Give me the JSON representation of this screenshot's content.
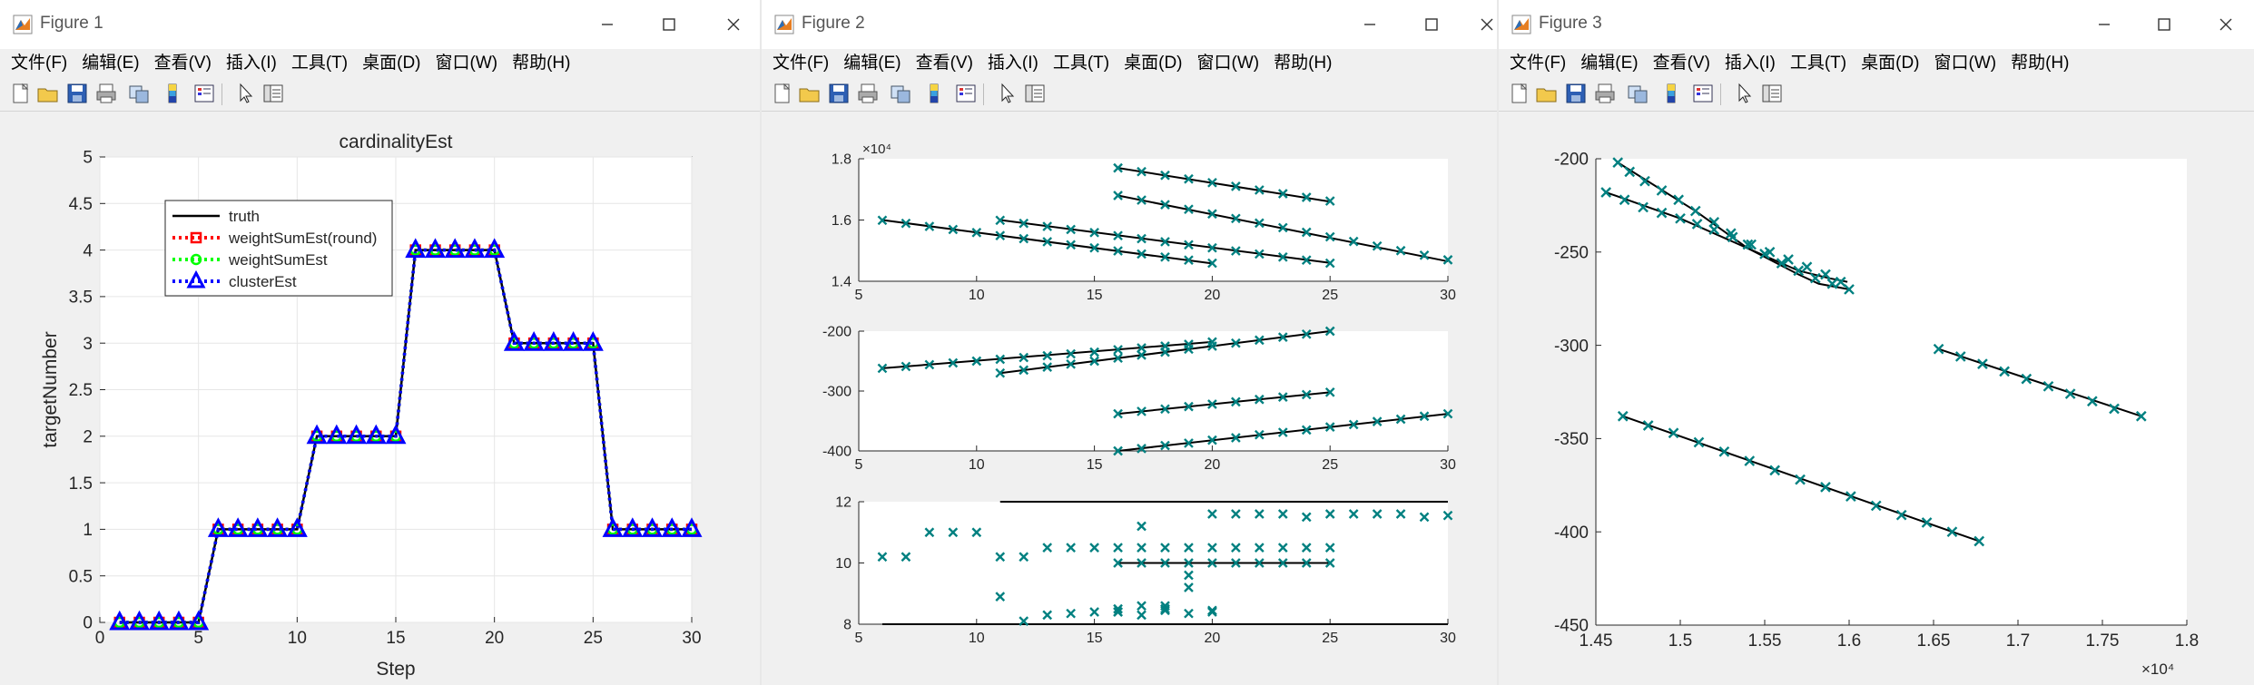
{
  "windows": [
    {
      "title": "Figure 1",
      "menu": [
        "文件(F)",
        "编辑(E)",
        "查看(V)",
        "插入(I)",
        "工具(T)",
        "桌面(D)",
        "窗口(W)",
        "帮助(H)"
      ]
    },
    {
      "title": "Figure 2",
      "menu": [
        "文件(F)",
        "编辑(E)",
        "查看(V)",
        "插入(I)",
        "工具(T)",
        "桌面(D)",
        "窗口(W)",
        "帮助(H)"
      ]
    },
    {
      "title": "Figure 3",
      "menu": [
        "文件(F)",
        "编辑(E)",
        "查看(V)",
        "插入(I)",
        "工具(T)",
        "桌面(D)",
        "窗口(W)",
        "帮助(H)"
      ]
    }
  ],
  "toolbar_icons": [
    "new-figure-icon",
    "open-icon",
    "save-icon",
    "print-icon",
    "link-icon",
    "colorbar-icon",
    "legend-icon",
    "pointer-icon",
    "property-inspector-icon"
  ],
  "colors": {
    "truth": "#000000",
    "round": "#ff0000",
    "weight": "#00ff00",
    "cluster": "#0000ff",
    "teal": "#008080",
    "axes_bg": "#ffffff"
  },
  "chart_data": [
    {
      "type": "line",
      "title": "cardinalityEst",
      "xlabel": "Step",
      "ylabel": "targetNumber",
      "xlim": [
        0,
        30
      ],
      "ylim": [
        0,
        5
      ],
      "xticks": [
        0,
        5,
        10,
        15,
        20,
        25,
        30
      ],
      "yticks": [
        0,
        0.5,
        1,
        1.5,
        2,
        2.5,
        3,
        3.5,
        4,
        4.5,
        5
      ],
      "grid": true,
      "legend_position": "upper-left",
      "x": [
        1,
        2,
        3,
        4,
        5,
        6,
        7,
        8,
        9,
        10,
        11,
        12,
        13,
        14,
        15,
        16,
        17,
        18,
        19,
        20,
        21,
        22,
        23,
        24,
        25,
        26,
        27,
        28,
        29,
        30
      ],
      "series": [
        {
          "name": "truth",
          "style": "solid",
          "color": "#000000",
          "marker": "none",
          "values": [
            0,
            0,
            0,
            0,
            0,
            1,
            1,
            1,
            1,
            1,
            2,
            2,
            2,
            2,
            2,
            4,
            4,
            4,
            4,
            4,
            3,
            3,
            3,
            3,
            3,
            1,
            1,
            1,
            1,
            1
          ]
        },
        {
          "name": "weightSumEst(round)",
          "style": "dotted",
          "color": "#ff0000",
          "marker": "square",
          "values": [
            0,
            0,
            0,
            0,
            0,
            1,
            1,
            1,
            1,
            1,
            2,
            2,
            2,
            2,
            2,
            4,
            4,
            4,
            4,
            4,
            3,
            3,
            3,
            3,
            3,
            1,
            1,
            1,
            1,
            1
          ]
        },
        {
          "name": "weightSumEst",
          "style": "dotted",
          "color": "#00ff00",
          "marker": "circle",
          "values": [
            0,
            0,
            0,
            0,
            0,
            1,
            1,
            1,
            1,
            1,
            2,
            2,
            2,
            2,
            2,
            4,
            4,
            4,
            4,
            4,
            3,
            3,
            3,
            3,
            3,
            1,
            1,
            1,
            1,
            1
          ]
        },
        {
          "name": "clusterEst",
          "style": "dotted",
          "color": "#0000ff",
          "marker": "triangle",
          "values": [
            0,
            0,
            0,
            0,
            0,
            1,
            1,
            1,
            1,
            1,
            2,
            2,
            2,
            2,
            2,
            4,
            4,
            4,
            4,
            4,
            3,
            3,
            3,
            3,
            3,
            1,
            1,
            1,
            1,
            1
          ]
        }
      ]
    },
    {
      "type": "line",
      "xlim": [
        5,
        30
      ],
      "ylim": [
        14000,
        18000
      ],
      "xticks": [
        5,
        10,
        15,
        20,
        25,
        30
      ],
      "yticks": [
        14000,
        16000,
        18000
      ],
      "ytick_labels": [
        "1.4",
        "1.6",
        "1.8"
      ],
      "exponent_label": "×10⁴",
      "lines": [
        {
          "x": [
            6,
            20
          ],
          "y": [
            16000,
            14580
          ]
        },
        {
          "x": [
            11,
            25
          ],
          "y": [
            16000,
            14600
          ]
        },
        {
          "x": [
            16,
            25
          ],
          "y": [
            17700,
            16600
          ]
        },
        {
          "x": [
            16,
            30
          ],
          "y": [
            16800,
            14650
          ]
        }
      ],
      "scatter": [
        {
          "x": [
            6,
            7,
            8,
            9,
            10,
            11,
            12,
            13,
            14,
            15,
            16,
            17,
            18,
            19,
            20
          ],
          "y": [
            15990,
            15890,
            15790,
            15690,
            15590,
            15490,
            15390,
            15290,
            15190,
            15090,
            14990,
            14890,
            14790,
            14690,
            14590
          ]
        },
        {
          "x": [
            11,
            12,
            13,
            14,
            15,
            16,
            17,
            18,
            19,
            20,
            21,
            22,
            23,
            24,
            25
          ],
          "y": [
            15990,
            15890,
            15790,
            15690,
            15590,
            15490,
            15390,
            15290,
            15190,
            15090,
            14990,
            14890,
            14790,
            14690,
            14590
          ]
        },
        {
          "x": [
            16,
            17,
            18,
            19,
            20,
            21,
            22,
            23,
            24,
            25
          ],
          "y": [
            17700,
            17580,
            17460,
            17340,
            17220,
            17100,
            16980,
            16860,
            16740,
            16620
          ]
        },
        {
          "x": [
            16,
            17,
            18,
            19,
            20,
            21,
            22,
            23,
            24,
            25,
            26,
            27,
            28,
            29,
            30
          ],
          "y": [
            16800,
            16650,
            16500,
            16350,
            16200,
            16050,
            15900,
            15750,
            15600,
            15450,
            15300,
            15150,
            15000,
            14850,
            14700
          ]
        }
      ]
    },
    {
      "type": "line",
      "xlim": [
        5,
        30
      ],
      "ylim": [
        -400,
        -200
      ],
      "xticks": [
        5,
        10,
        15,
        20,
        25,
        30
      ],
      "yticks": [
        -400,
        -300,
        -200
      ],
      "lines": [
        {
          "x": [
            6,
            20
          ],
          "y": [
            -262,
            -218
          ]
        },
        {
          "x": [
            11,
            25
          ],
          "y": [
            -270,
            -200
          ]
        },
        {
          "x": [
            16,
            25
          ],
          "y": [
            -338,
            -302
          ]
        },
        {
          "x": [
            16,
            30
          ],
          "y": [
            -400,
            -338
          ]
        }
      ],
      "scatter": [
        {
          "x": [
            6,
            7,
            8,
            9,
            10,
            11,
            12,
            13,
            14,
            15,
            16,
            17,
            18,
            19,
            20
          ],
          "y": [
            -262,
            -259,
            -256,
            -253,
            -250,
            -247,
            -244,
            -241,
            -238,
            -235,
            -231,
            -228,
            -225,
            -222,
            -218
          ]
        },
        {
          "x": [
            11,
            12,
            13,
            14,
            15,
            16,
            17,
            18,
            19,
            20,
            21,
            22,
            23,
            24,
            25
          ],
          "y": [
            -270,
            -265,
            -260,
            -255,
            -250,
            -245,
            -240,
            -235,
            -230,
            -225,
            -220,
            -215,
            -210,
            -205,
            -200
          ]
        },
        {
          "x": [
            16,
            17,
            18,
            19,
            20,
            21,
            22,
            23,
            24,
            25
          ],
          "y": [
            -338,
            -334,
            -330,
            -326,
            -322,
            -318,
            -314,
            -310,
            -306,
            -302
          ]
        },
        {
          "x": [
            16,
            17,
            18,
            19,
            20,
            21,
            22,
            23,
            24,
            25,
            26,
            27,
            28,
            29,
            30
          ],
          "y": [
            -400,
            -396,
            -391,
            -387,
            -382,
            -378,
            -373,
            -369,
            -365,
            -360,
            -356,
            -351,
            -347,
            -342,
            -338
          ]
        }
      ]
    },
    {
      "type": "line",
      "xlim": [
        5,
        30
      ],
      "ylim": [
        8,
        12
      ],
      "xticks": [
        5,
        10,
        15,
        20,
        25,
        30
      ],
      "yticks": [
        8,
        10,
        12
      ],
      "lines": [
        {
          "x": [
            6,
            20
          ],
          "y": [
            8,
            8
          ]
        },
        {
          "x": [
            11,
            30
          ],
          "y": [
            12,
            12
          ]
        },
        {
          "x": [
            16,
            25
          ],
          "y": [
            10,
            10
          ]
        },
        {
          "x": [
            16,
            30
          ],
          "y": [
            8,
            8
          ]
        }
      ],
      "scatter": [
        {
          "x": [
            6,
            7,
            8,
            9,
            10,
            11,
            12,
            13,
            14,
            15,
            16,
            17,
            18,
            19,
            20
          ],
          "y": [
            10.2,
            10.2,
            11.0,
            11.0,
            11.0,
            8.9,
            8.1,
            8.3,
            8.35,
            8.4,
            8.4,
            8.3,
            8.45,
            8.35,
            8.45
          ]
        },
        {
          "x": [
            11,
            12,
            13,
            14,
            15,
            16,
            17,
            18,
            19,
            20,
            21,
            22,
            23,
            24,
            25,
            26,
            27,
            28,
            29,
            30
          ],
          "y": [
            10.2,
            10.2,
            10.5,
            10.5,
            10.5,
            10.5,
            10.5,
            10.5,
            10.5,
            11.6,
            11.6,
            11.6,
            11.6,
            11.5,
            11.6,
            11.6,
            11.6,
            11.6,
            11.5,
            11.55
          ]
        },
        {
          "x": [
            16,
            17,
            18,
            19,
            20,
            21,
            22,
            23,
            24,
            25
          ],
          "y": [
            10.0,
            10.0,
            10.0,
            10.0,
            10.0,
            10.0,
            10.0,
            10.0,
            10.0,
            10.0
          ]
        },
        {
          "x": [
            16,
            17,
            18,
            19,
            20,
            21,
            22,
            23,
            24,
            25
          ],
          "y": [
            8.4,
            11.2,
            8.6,
            9.2,
            10.5,
            10.5,
            10.5,
            10.5,
            10.5,
            10.5
          ]
        },
        {
          "x": [
            16,
            17,
            18,
            19,
            20
          ],
          "y": [
            8.5,
            8.6,
            8.5,
            9.6,
            8.4
          ]
        }
      ]
    },
    {
      "type": "line",
      "xlim": [
        14500,
        18000
      ],
      "ylim": [
        -450,
        -200
      ],
      "xticks": [
        14500,
        15000,
        15500,
        16000,
        16500,
        17000,
        17500,
        18000
      ],
      "xtick_labels": [
        "1.45",
        "1.5",
        "1.55",
        "1.6",
        "1.65",
        "1.7",
        "1.75",
        "1.8"
      ],
      "yticks": [
        -450,
        -400,
        -350,
        -300,
        -250,
        -200
      ],
      "exponent_label": "×10⁴",
      "lines": [
        {
          "x": [
            14630,
            15090,
            15400,
            15700,
            15820,
            16000
          ],
          "y": [
            -202,
            -228,
            -248,
            -262,
            -267,
            -270
          ]
        },
        {
          "x": [
            14560,
            15000,
            15400,
            15700,
            15880,
            15990
          ],
          "y": [
            -218,
            -232,
            -248,
            -260,
            -264,
            -266
          ]
        },
        {
          "x": [
            16530,
            17730
          ],
          "y": [
            -302,
            -338
          ]
        },
        {
          "x": [
            14660,
            16770
          ],
          "y": [
            -338,
            -405
          ]
        }
      ],
      "scatter": [
        {
          "x": [
            14630,
            14700,
            14790,
            14890,
            14990,
            15090,
            15200,
            15300,
            15400,
            15500,
            15600,
            15700,
            15800,
            15900,
            16000
          ],
          "y": [
            -202,
            -207,
            -212,
            -217,
            -222,
            -228,
            -234,
            -240,
            -246,
            -251,
            -256,
            -260,
            -264,
            -267,
            -270
          ]
        },
        {
          "x": [
            14560,
            14670,
            14780,
            14890,
            15000,
            15100,
            15200,
            15310,
            15420,
            15530,
            15640,
            15750,
            15860,
            15950
          ],
          "y": [
            -218,
            -222,
            -226,
            -229,
            -232,
            -235,
            -238,
            -242,
            -246,
            -250,
            -254,
            -258,
            -262,
            -266
          ]
        },
        {
          "x": [
            16530,
            16660,
            16790,
            16920,
            17050,
            17180,
            17310,
            17440,
            17570,
            17730
          ],
          "y": [
            -302,
            -306,
            -310,
            -314,
            -318,
            -322,
            -326,
            -330,
            -334,
            -338
          ]
        },
        {
          "x": [
            14660,
            14810,
            14960,
            15110,
            15260,
            15410,
            15560,
            15710,
            15860,
            16010,
            16160,
            16310,
            16460,
            16610,
            16770
          ],
          "y": [
            -338,
            -343,
            -347,
            -352,
            -357,
            -362,
            -367,
            -372,
            -376,
            -381,
            -386,
            -391,
            -395,
            -400,
            -405
          ]
        }
      ]
    }
  ]
}
